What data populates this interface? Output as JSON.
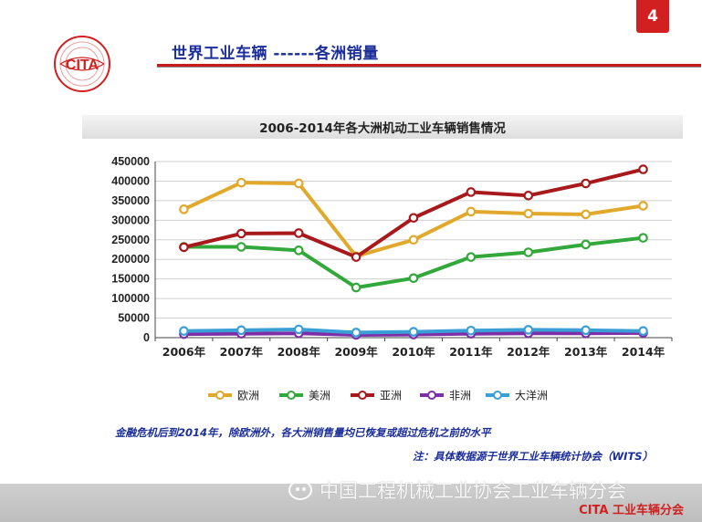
{
  "page_number": "4",
  "logo_text": "CITA",
  "slide_title": "世界工业车辆  ------各洲销量",
  "chart_title": "2006-2014年各大洲机动工业车辆销售情况",
  "note_main": "金融危机后到2014年，除欧洲外，各大洲销售量均已恢复或超过危机之前的水平",
  "note_source": "注：具体数据源于世界工业车辆统计协会（WITS）",
  "watermark": "中国工程机械工业协会工业车辆分会",
  "footer_org": "CITA 工业车辆分会",
  "colors": {
    "accent_red": "#d21f1f",
    "title_blue": "#1b2e9a"
  },
  "chart_data": {
    "type": "line",
    "title": "2006-2014年各大洲机动工业车辆销售情况",
    "categories": [
      "2006年",
      "2007年",
      "2008年",
      "2009年",
      "2010年",
      "2011年",
      "2012年",
      "2013年",
      "2014年"
    ],
    "ylim": [
      0,
      450000
    ],
    "yticks": [
      "0",
      "50000",
      "100000",
      "150000",
      "200000",
      "250000",
      "300000",
      "350000",
      "400000",
      "450000"
    ],
    "grid": true,
    "legend_position": "bottom",
    "series": [
      {
        "name": "欧洲",
        "color": "#e0a92c",
        "values": [
          328000,
          396000,
          394000,
          208000,
          250000,
          322000,
          317000,
          315000,
          337000
        ]
      },
      {
        "name": "美洲",
        "color": "#33a83a",
        "values": [
          232000,
          232000,
          223000,
          128000,
          152000,
          206000,
          218000,
          238000,
          255000
        ]
      },
      {
        "name": "亚洲",
        "color": "#a8191c",
        "values": [
          231000,
          266000,
          267000,
          206000,
          306000,
          372000,
          363000,
          394000,
          430000
        ]
      },
      {
        "name": "非洲",
        "color": "#7e2fa8",
        "values": [
          9000,
          10000,
          11000,
          7000,
          8000,
          10000,
          11000,
          11000,
          12000
        ]
      },
      {
        "name": "大洋洲",
        "color": "#3a9fd6",
        "values": [
          17000,
          19000,
          21000,
          13000,
          15000,
          18000,
          20000,
          19000,
          17000
        ]
      }
    ]
  }
}
